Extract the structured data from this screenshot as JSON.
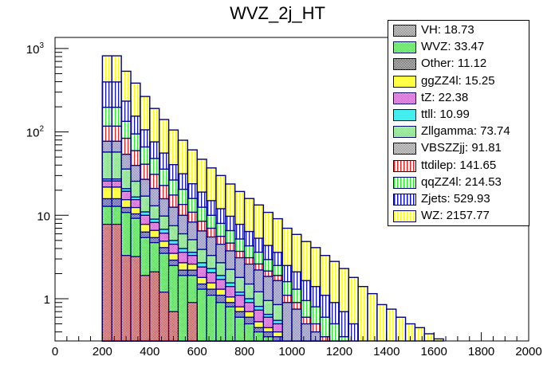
{
  "chart_data": {
    "type": "bar",
    "subtype": "stacked-histogram",
    "title": "WVZ_2j_HT",
    "xlabel": "",
    "ylabel": "",
    "xlim": [
      0,
      2000
    ],
    "ylim": [
      0.31,
      1300
    ],
    "yscale": "log",
    "xticks": [
      "0",
      "200",
      "400",
      "600",
      "800",
      "1000",
      "1200",
      "1400",
      "1600",
      "1800",
      "2000"
    ],
    "xtick_values": [
      0,
      200,
      400,
      600,
      800,
      1000,
      1200,
      1400,
      1600,
      1800,
      2000
    ],
    "yticks": [
      "1",
      "10",
      "10^2",
      "10^3"
    ],
    "ytick_values": [
      1,
      10,
      100,
      1000
    ],
    "grid": false,
    "legend_position": "top-right",
    "bin_width": 40,
    "bin_start": 200,
    "series": [
      {
        "name": "VH",
        "legend": "VH: 18.73",
        "color": "#cc3333",
        "pattern": "checker",
        "values": [
          7.8,
          7.8,
          3.3,
          3.2,
          1.9,
          2.1,
          1.2,
          0.7,
          0,
          0.9,
          0,
          0,
          0,
          0,
          0,
          0,
          0,
          0,
          0,
          0,
          0,
          0,
          0,
          0,
          0,
          0,
          0,
          0,
          0,
          0,
          0,
          0,
          0,
          0,
          0,
          0,
          0,
          0,
          0,
          0
        ]
      },
      {
        "name": "WVZ",
        "legend": "WVZ: 33.47",
        "color": "#44dd44",
        "pattern": "checker",
        "values": [
          5,
          5,
          7.5,
          6,
          3.5,
          2.6,
          2.3,
          1.8,
          1.9,
          1.0,
          1.3,
          1.1,
          0.9,
          0.8,
          0.6,
          0.5,
          0.4,
          0.35,
          0.3,
          0,
          0,
          0,
          0,
          0,
          0,
          0,
          0,
          0,
          0,
          0,
          0,
          0,
          0,
          0,
          0,
          0,
          0,
          0,
          0,
          0
        ]
      },
      {
        "name": "Other",
        "legend": "Other: 11.12",
        "color": "#2222cc",
        "pattern": "checker",
        "values": [
          3,
          3,
          1.6,
          1.2,
          0.9,
          0.7,
          0.6,
          0.4,
          0.3,
          0.3,
          0.2,
          0.2,
          0.2,
          0.1,
          0.1,
          0.1,
          0.05,
          0.05,
          0.05,
          0,
          0,
          0,
          0,
          0,
          0,
          0,
          0,
          0,
          0,
          0,
          0,
          0,
          0,
          0,
          0,
          0,
          0,
          0,
          0,
          0
        ]
      },
      {
        "name": "ggZZ4l",
        "legend": "ggZZ4l: 15.25",
        "color": "#ffff44",
        "pattern": "solid",
        "values": [
          6,
          6,
          3,
          2,
          1.5,
          1.2,
          0.8,
          0.6,
          0.5,
          0.4,
          0.3,
          0.25,
          0.2,
          0.15,
          0.1,
          0.1,
          0.08,
          0.05,
          0.05,
          0,
          0,
          0,
          0,
          0,
          0,
          0,
          0,
          0,
          0,
          0,
          0,
          0,
          0,
          0,
          0,
          0,
          0,
          0,
          0,
          0
        ]
      },
      {
        "name": "tZ",
        "legend": "tZ: 22.38",
        "color": "#dd44dd",
        "pattern": "checker",
        "values": [
          4,
          4,
          4,
          3,
          2.2,
          1.6,
          1.2,
          1.0,
          0.9,
          0.7,
          0.6,
          0.5,
          0.4,
          0.35,
          0.3,
          0.2,
          0.2,
          0.15,
          0.1,
          0,
          0,
          0,
          0,
          0,
          0,
          0,
          0,
          0,
          0,
          0,
          0,
          0,
          0,
          0,
          0,
          0,
          0,
          0,
          0,
          0
        ]
      },
      {
        "name": "ttll",
        "legend": "ttll: 10.99",
        "color": "#44eeee",
        "pattern": "solid",
        "values": [
          1.5,
          1.5,
          1.5,
          1.2,
          1,
          0.8,
          0.7,
          0.5,
          0.4,
          0.3,
          0.3,
          0.25,
          0.2,
          0.15,
          0.1,
          0.1,
          0.08,
          0.05,
          0.05,
          0,
          0,
          0,
          0,
          0,
          0,
          0,
          0,
          0,
          0,
          0,
          0,
          0,
          0,
          0,
          0,
          0,
          0,
          0,
          0,
          0
        ]
      },
      {
        "name": "Zllgamma",
        "legend": "Zllgamma: 73.74",
        "color": "#77dd77",
        "pattern": "checker",
        "values": [
          30,
          30,
          15,
          9,
          6,
          4,
          3,
          2.5,
          2,
          1.5,
          1.2,
          1,
          0.8,
          0.7,
          0.6,
          0.5,
          0.4,
          0.3,
          0.3,
          0.2,
          0.15,
          0,
          0,
          0,
          0,
          0,
          0,
          0,
          0,
          0,
          0,
          0,
          0,
          0,
          0,
          0,
          0,
          0,
          0,
          0
        ]
      },
      {
        "name": "VBSZZjj",
        "legend": "VBSZZjj: 91.81",
        "color": "#6666cc",
        "pattern": "checker",
        "values": [
          20,
          20,
          18,
          14,
          10,
          8,
          6,
          5,
          4,
          3.2,
          2.6,
          2.2,
          1.8,
          1.5,
          1.3,
          1.1,
          1,
          0.9,
          0.8,
          0.7,
          0.6,
          0.5,
          0.4,
          0.3,
          0.25,
          0.2,
          0.1,
          0,
          0,
          0,
          0,
          0,
          0,
          0,
          0,
          0,
          0,
          0,
          0,
          0
        ]
      },
      {
        "name": "ttdilep",
        "legend": "ttdilep: 141.65",
        "color": "#ee2222",
        "pattern": "vlines",
        "values": [
          40,
          40,
          30,
          20,
          14,
          10,
          7,
          5,
          3.5,
          2.6,
          2,
          1.5,
          1.1,
          0.9,
          0.6,
          0.5,
          0.4,
          0.3,
          0.25,
          0.2,
          0.15,
          0.1,
          0.1,
          0.05,
          0.05,
          0,
          0,
          0,
          0,
          0,
          0,
          0,
          0,
          0,
          0,
          0,
          0,
          0,
          0,
          0
        ]
      },
      {
        "name": "qqZZ4l",
        "legend": "qqZZ4l: 214.53",
        "color": "#22ee22",
        "pattern": "vlines",
        "values": [
          80,
          80,
          50,
          35,
          25,
          17,
          13,
          9,
          7,
          5,
          4,
          3,
          2.4,
          1.9,
          1.5,
          1.2,
          1,
          0.8,
          0.6,
          0.5,
          0.4,
          0.35,
          0.3,
          0.25,
          0.2,
          0.15,
          0.1,
          0.1,
          0,
          0,
          0,
          0,
          0,
          0,
          0,
          0,
          0,
          0,
          0,
          0
        ]
      },
      {
        "name": "Zjets",
        "legend": "Zjets: 529.93",
        "color": "#1111dd",
        "pattern": "vlines",
        "values": [
          200,
          200,
          100,
          60,
          40,
          28,
          20,
          14,
          11,
          8,
          6.5,
          5,
          4,
          3.2,
          2.6,
          2.1,
          1.7,
          1.4,
          1.1,
          0.9,
          0.8,
          0.7,
          0.6,
          0.5,
          0.4,
          0.35,
          0.3,
          0.2,
          0.2,
          0,
          0,
          0,
          0,
          0,
          0,
          0,
          0,
          0,
          0,
          0
        ]
      },
      {
        "name": "WZ",
        "legend": "WZ: 2157.77",
        "color": "#ffff00",
        "pattern": "vlines",
        "values": [
          420,
          420,
          300,
          230,
          160,
          115,
          85,
          65,
          48,
          37,
          28,
          22,
          18,
          14,
          11.5,
          9.5,
          8,
          6.5,
          5.5,
          4.5,
          3.8,
          3.2,
          2.7,
          2.2,
          1.9,
          1.6,
          1.3,
          1.1,
          0.95,
          0.85,
          0.75,
          0.6,
          0.5,
          0.45,
          0.38,
          0.33,
          0,
          0,
          0,
          0
        ]
      }
    ]
  }
}
